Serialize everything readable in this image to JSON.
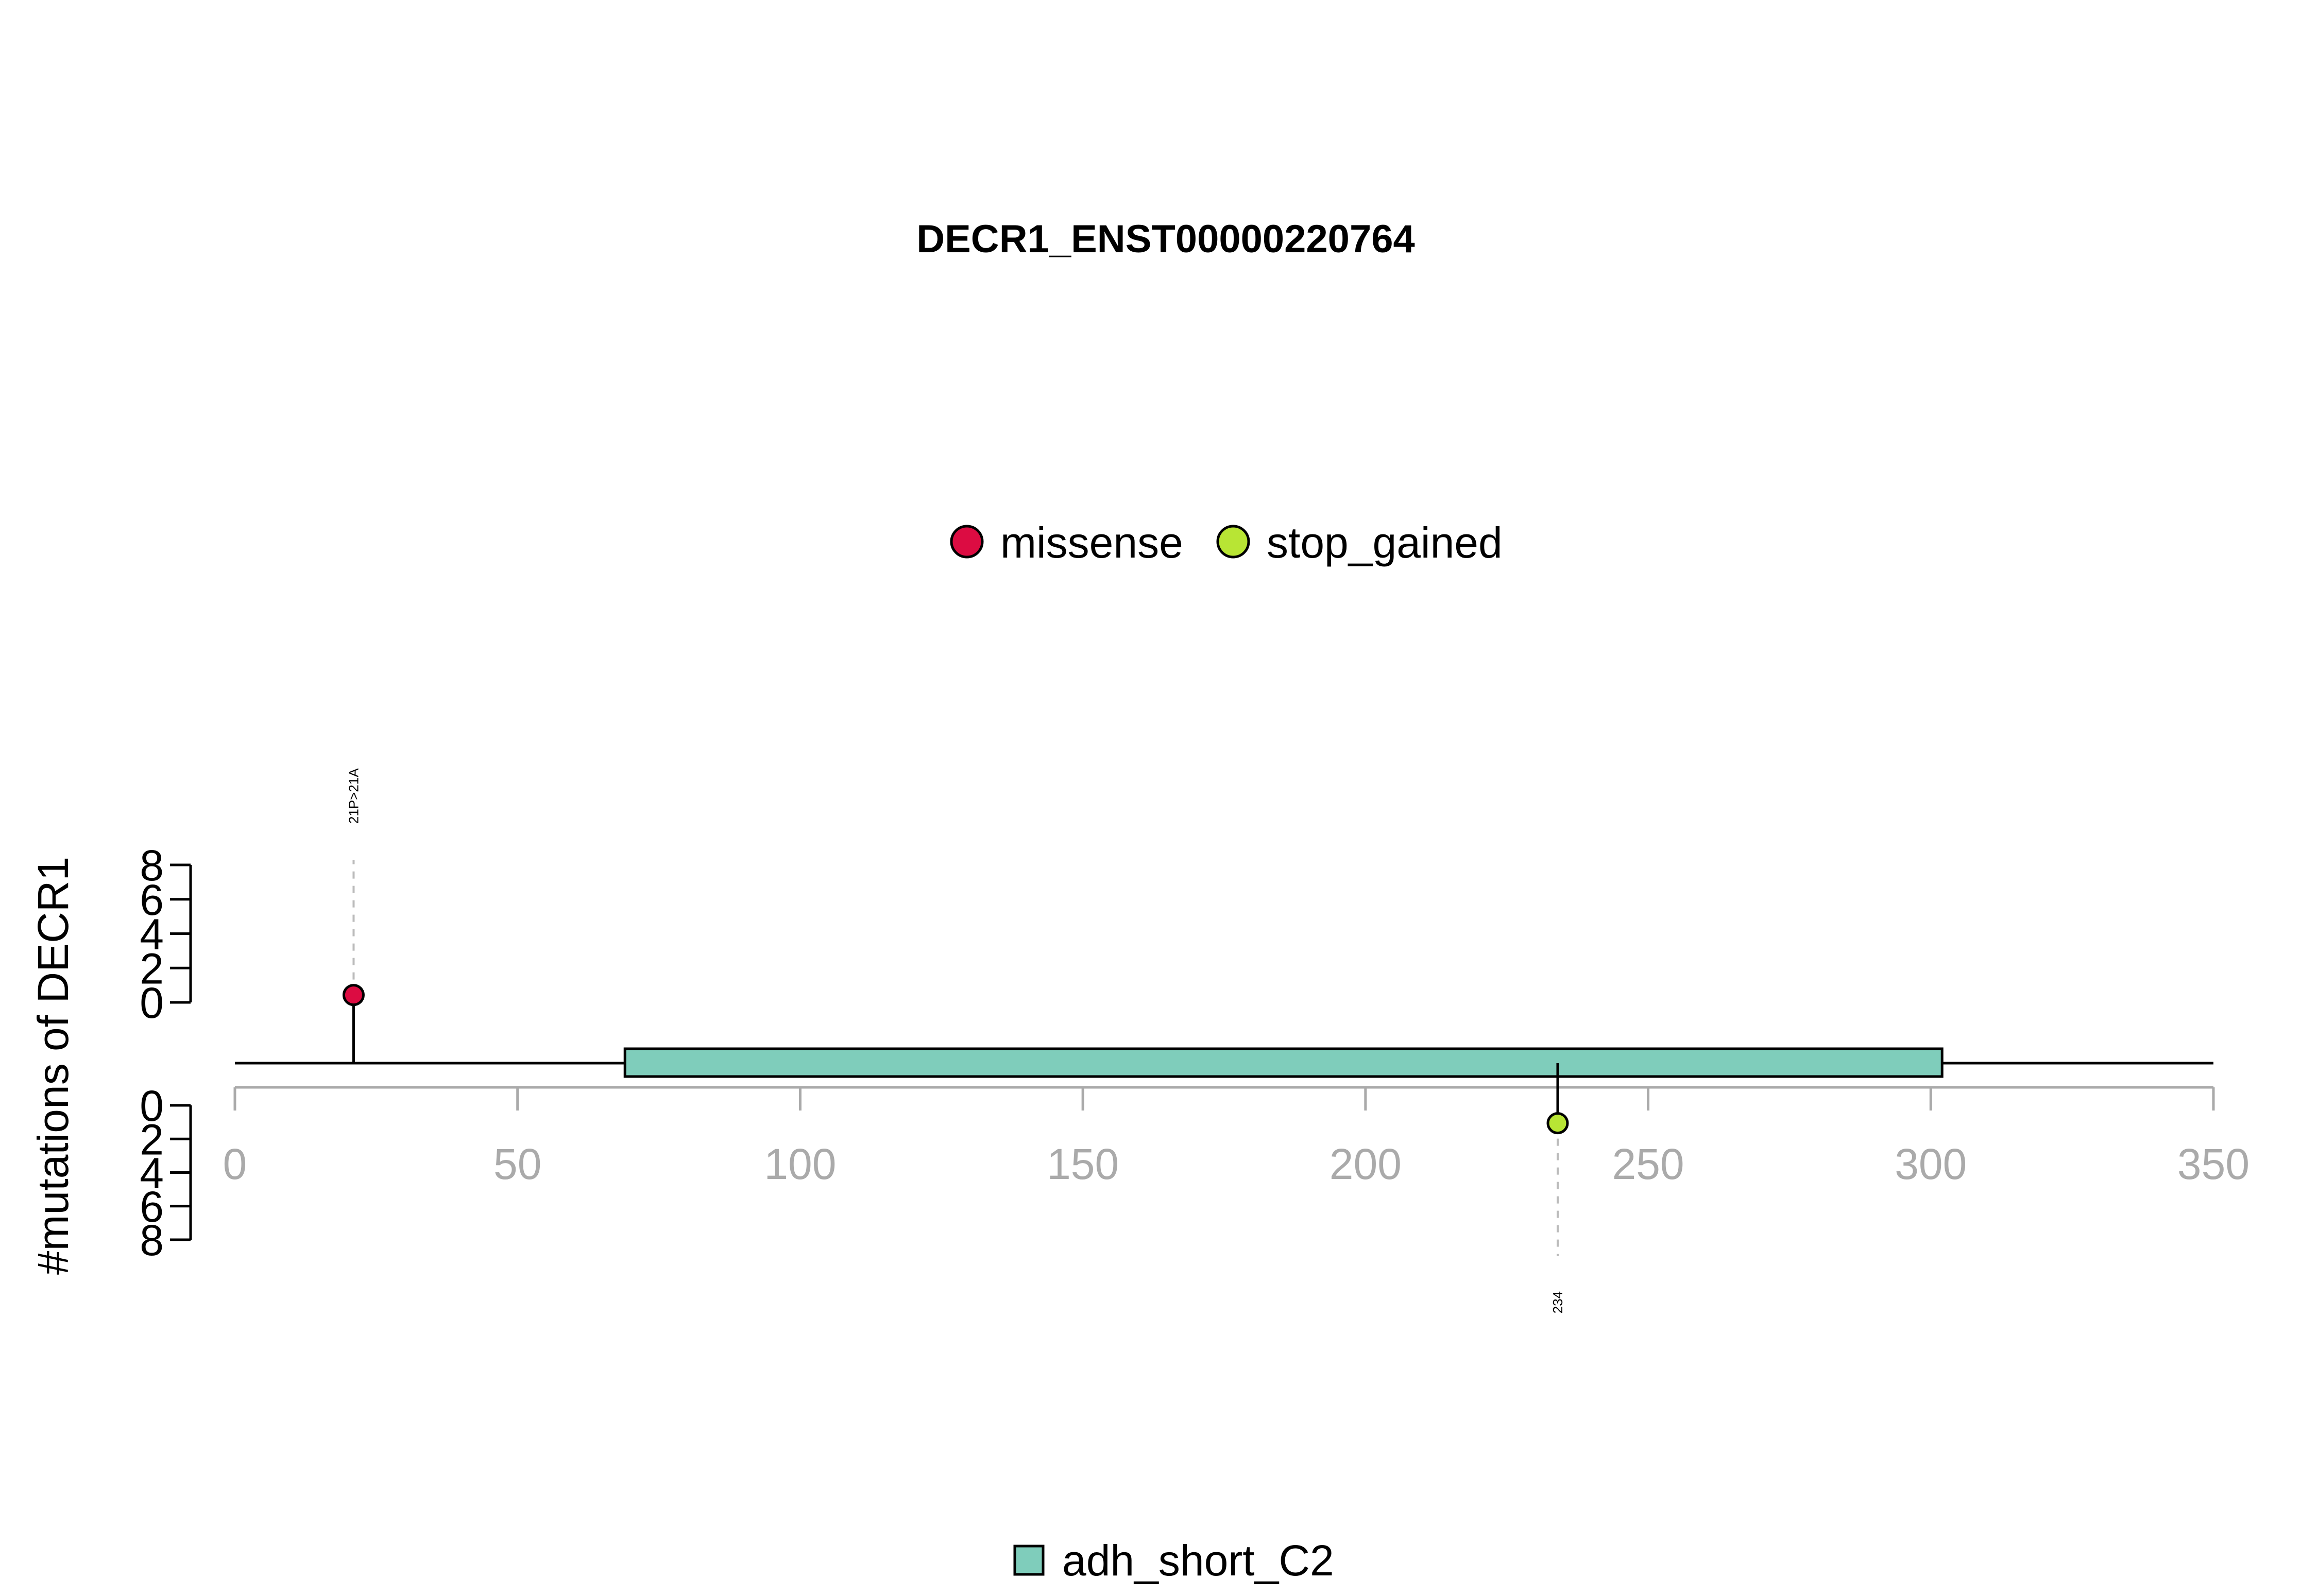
{
  "chart_data": {
    "type": "lollipop",
    "title": "DECR1_ENST00000220764",
    "ylabel": "#mutations of DECR1",
    "xlim": [
      0,
      350
    ],
    "x_ticks": [
      0,
      50,
      100,
      150,
      200,
      250,
      300,
      350
    ],
    "y_ticks": [
      0,
      2,
      4,
      6,
      8
    ],
    "ylim": [
      0,
      8
    ],
    "protein_length": 350,
    "mutation_legend": [
      {
        "label": "missense",
        "color": "#dc0c42"
      },
      {
        "label": "stop_gained",
        "color": "#b8e534"
      }
    ],
    "domains": [
      {
        "name": "adh_short_C2",
        "start": 69,
        "end": 302,
        "color": "#7fcdbb"
      }
    ],
    "mutations": [
      {
        "position": 21,
        "count": 1,
        "type": "missense",
        "label": "21P>21A",
        "side": "top",
        "color": "#dc0c42"
      },
      {
        "position": 234,
        "count": 1,
        "type": "stop_gained",
        "label": "234",
        "side": "bottom",
        "color": "#b8e534"
      }
    ],
    "domain_legend": [
      {
        "label": "adh_short_C2",
        "color": "#7fcdbb"
      }
    ]
  }
}
